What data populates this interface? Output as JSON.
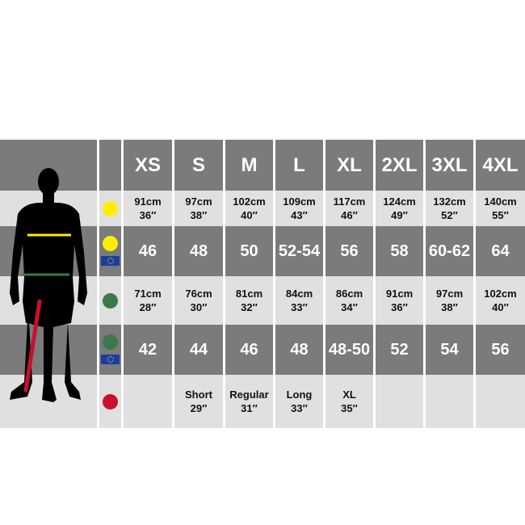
{
  "sizes": [
    "XS",
    "S",
    "M",
    "L",
    "XL",
    "2XL",
    "3XL",
    "4XL"
  ],
  "rows": [
    {
      "indicator": "chest",
      "dot_color": "#ffee00",
      "eu": false,
      "style": "small",
      "values": [
        [
          "91cm",
          "36″"
        ],
        [
          "97cm",
          "38″"
        ],
        [
          "102cm",
          "40″"
        ],
        [
          "109cm",
          "43″"
        ],
        [
          "117cm",
          "46″"
        ],
        [
          "124cm",
          "49″"
        ],
        [
          "132cm",
          "52″"
        ],
        [
          "140cm",
          "55″"
        ]
      ]
    },
    {
      "indicator": "chest-eu",
      "dot_color": "#ffee00",
      "eu": true,
      "style": "big",
      "values": [
        [
          "46"
        ],
        [
          "48"
        ],
        [
          "50"
        ],
        [
          "52-54"
        ],
        [
          "56"
        ],
        [
          "58"
        ],
        [
          "60-62"
        ],
        [
          "64"
        ]
      ]
    },
    {
      "indicator": "waist",
      "dot_color": "#3a7a4a",
      "eu": false,
      "style": "small",
      "values": [
        [
          "71cm",
          "28″"
        ],
        [
          "76cm",
          "30″"
        ],
        [
          "81cm",
          "32″"
        ],
        [
          "84cm",
          "33″"
        ],
        [
          "86cm",
          "34″"
        ],
        [
          "91cm",
          "36″"
        ],
        [
          "97cm",
          "38″"
        ],
        [
          "102cm",
          "40″"
        ]
      ]
    },
    {
      "indicator": "waist-eu",
      "dot_color": "#3a7a4a",
      "eu": true,
      "style": "big",
      "values": [
        [
          "42"
        ],
        [
          "44"
        ],
        [
          "46"
        ],
        [
          "48"
        ],
        [
          "48-50"
        ],
        [
          "52"
        ],
        [
          "54"
        ],
        [
          "56"
        ]
      ]
    },
    {
      "indicator": "inside-leg",
      "dot_color": "#c8102e",
      "eu": false,
      "style": "small",
      "values": [
        [],
        [
          "Short",
          "29″"
        ],
        [
          "Regular",
          "31″"
        ],
        [
          "Long",
          "33″"
        ],
        [
          "XL",
          "35″"
        ],
        [],
        [],
        []
      ]
    }
  ],
  "colors": {
    "dark": "#7b7b7b",
    "light": "#e0e0e0",
    "chest": "#ffee00",
    "waist": "#3a7a4a",
    "leg": "#c8102e",
    "eu_flag": "#1b3d9b"
  }
}
